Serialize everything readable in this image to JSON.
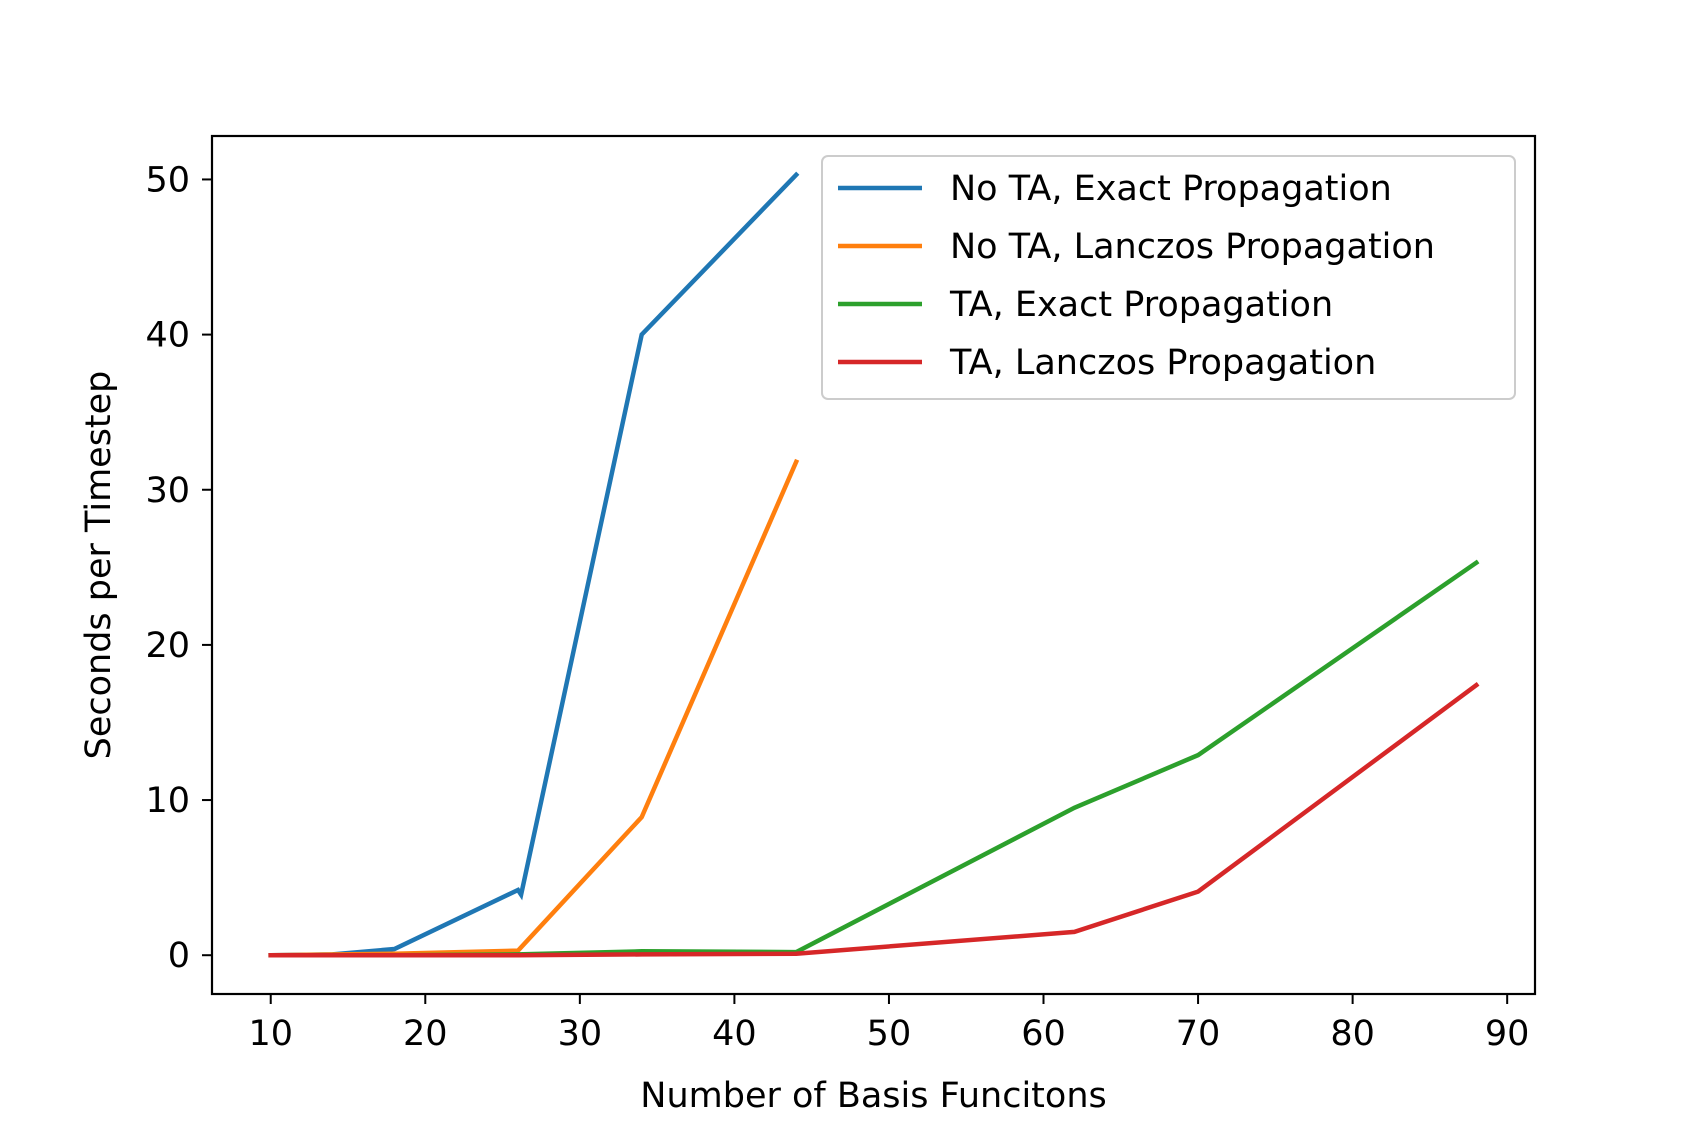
{
  "chart_data": {
    "type": "line",
    "xlabel": "Number of Basis Funcitons",
    "ylabel": "Seconds per Timestep",
    "xlim": [
      6.2,
      91.8
    ],
    "ylim": [
      -2.5,
      52.8
    ],
    "xticks": [
      10,
      20,
      30,
      40,
      50,
      60,
      70,
      80,
      90
    ],
    "yticks": [
      0,
      10,
      20,
      30,
      40,
      50
    ],
    "grid": false,
    "legend_position": "top-right",
    "series": [
      {
        "name": "No TA, Exact Propagation",
        "color": "#1f77b4",
        "x": [
          10,
          14,
          18,
          26,
          26.2,
          34,
          44
        ],
        "y": [
          0.0,
          0.05,
          0.4,
          4.2,
          3.9,
          40.0,
          50.3
        ]
      },
      {
        "name": "No TA, Lanczos Propagation",
        "color": "#ff7f0e",
        "x": [
          10,
          18,
          26,
          34,
          44
        ],
        "y": [
          0.0,
          0.1,
          0.3,
          8.9,
          31.8
        ]
      },
      {
        "name": "TA, Exact Propagation",
        "color": "#2ca02c",
        "x": [
          10,
          18,
          26,
          34,
          44,
          62,
          70,
          88
        ],
        "y": [
          0.0,
          0.0,
          0.05,
          0.25,
          0.2,
          9.5,
          12.9,
          25.3
        ]
      },
      {
        "name": "TA, Lanczos Propagation",
        "color": "#d62728",
        "x": [
          10,
          18,
          26,
          34,
          44,
          62,
          70,
          88
        ],
        "y": [
          0.0,
          0.0,
          0.0,
          0.05,
          0.1,
          1.5,
          4.1,
          17.4
        ]
      }
    ]
  }
}
